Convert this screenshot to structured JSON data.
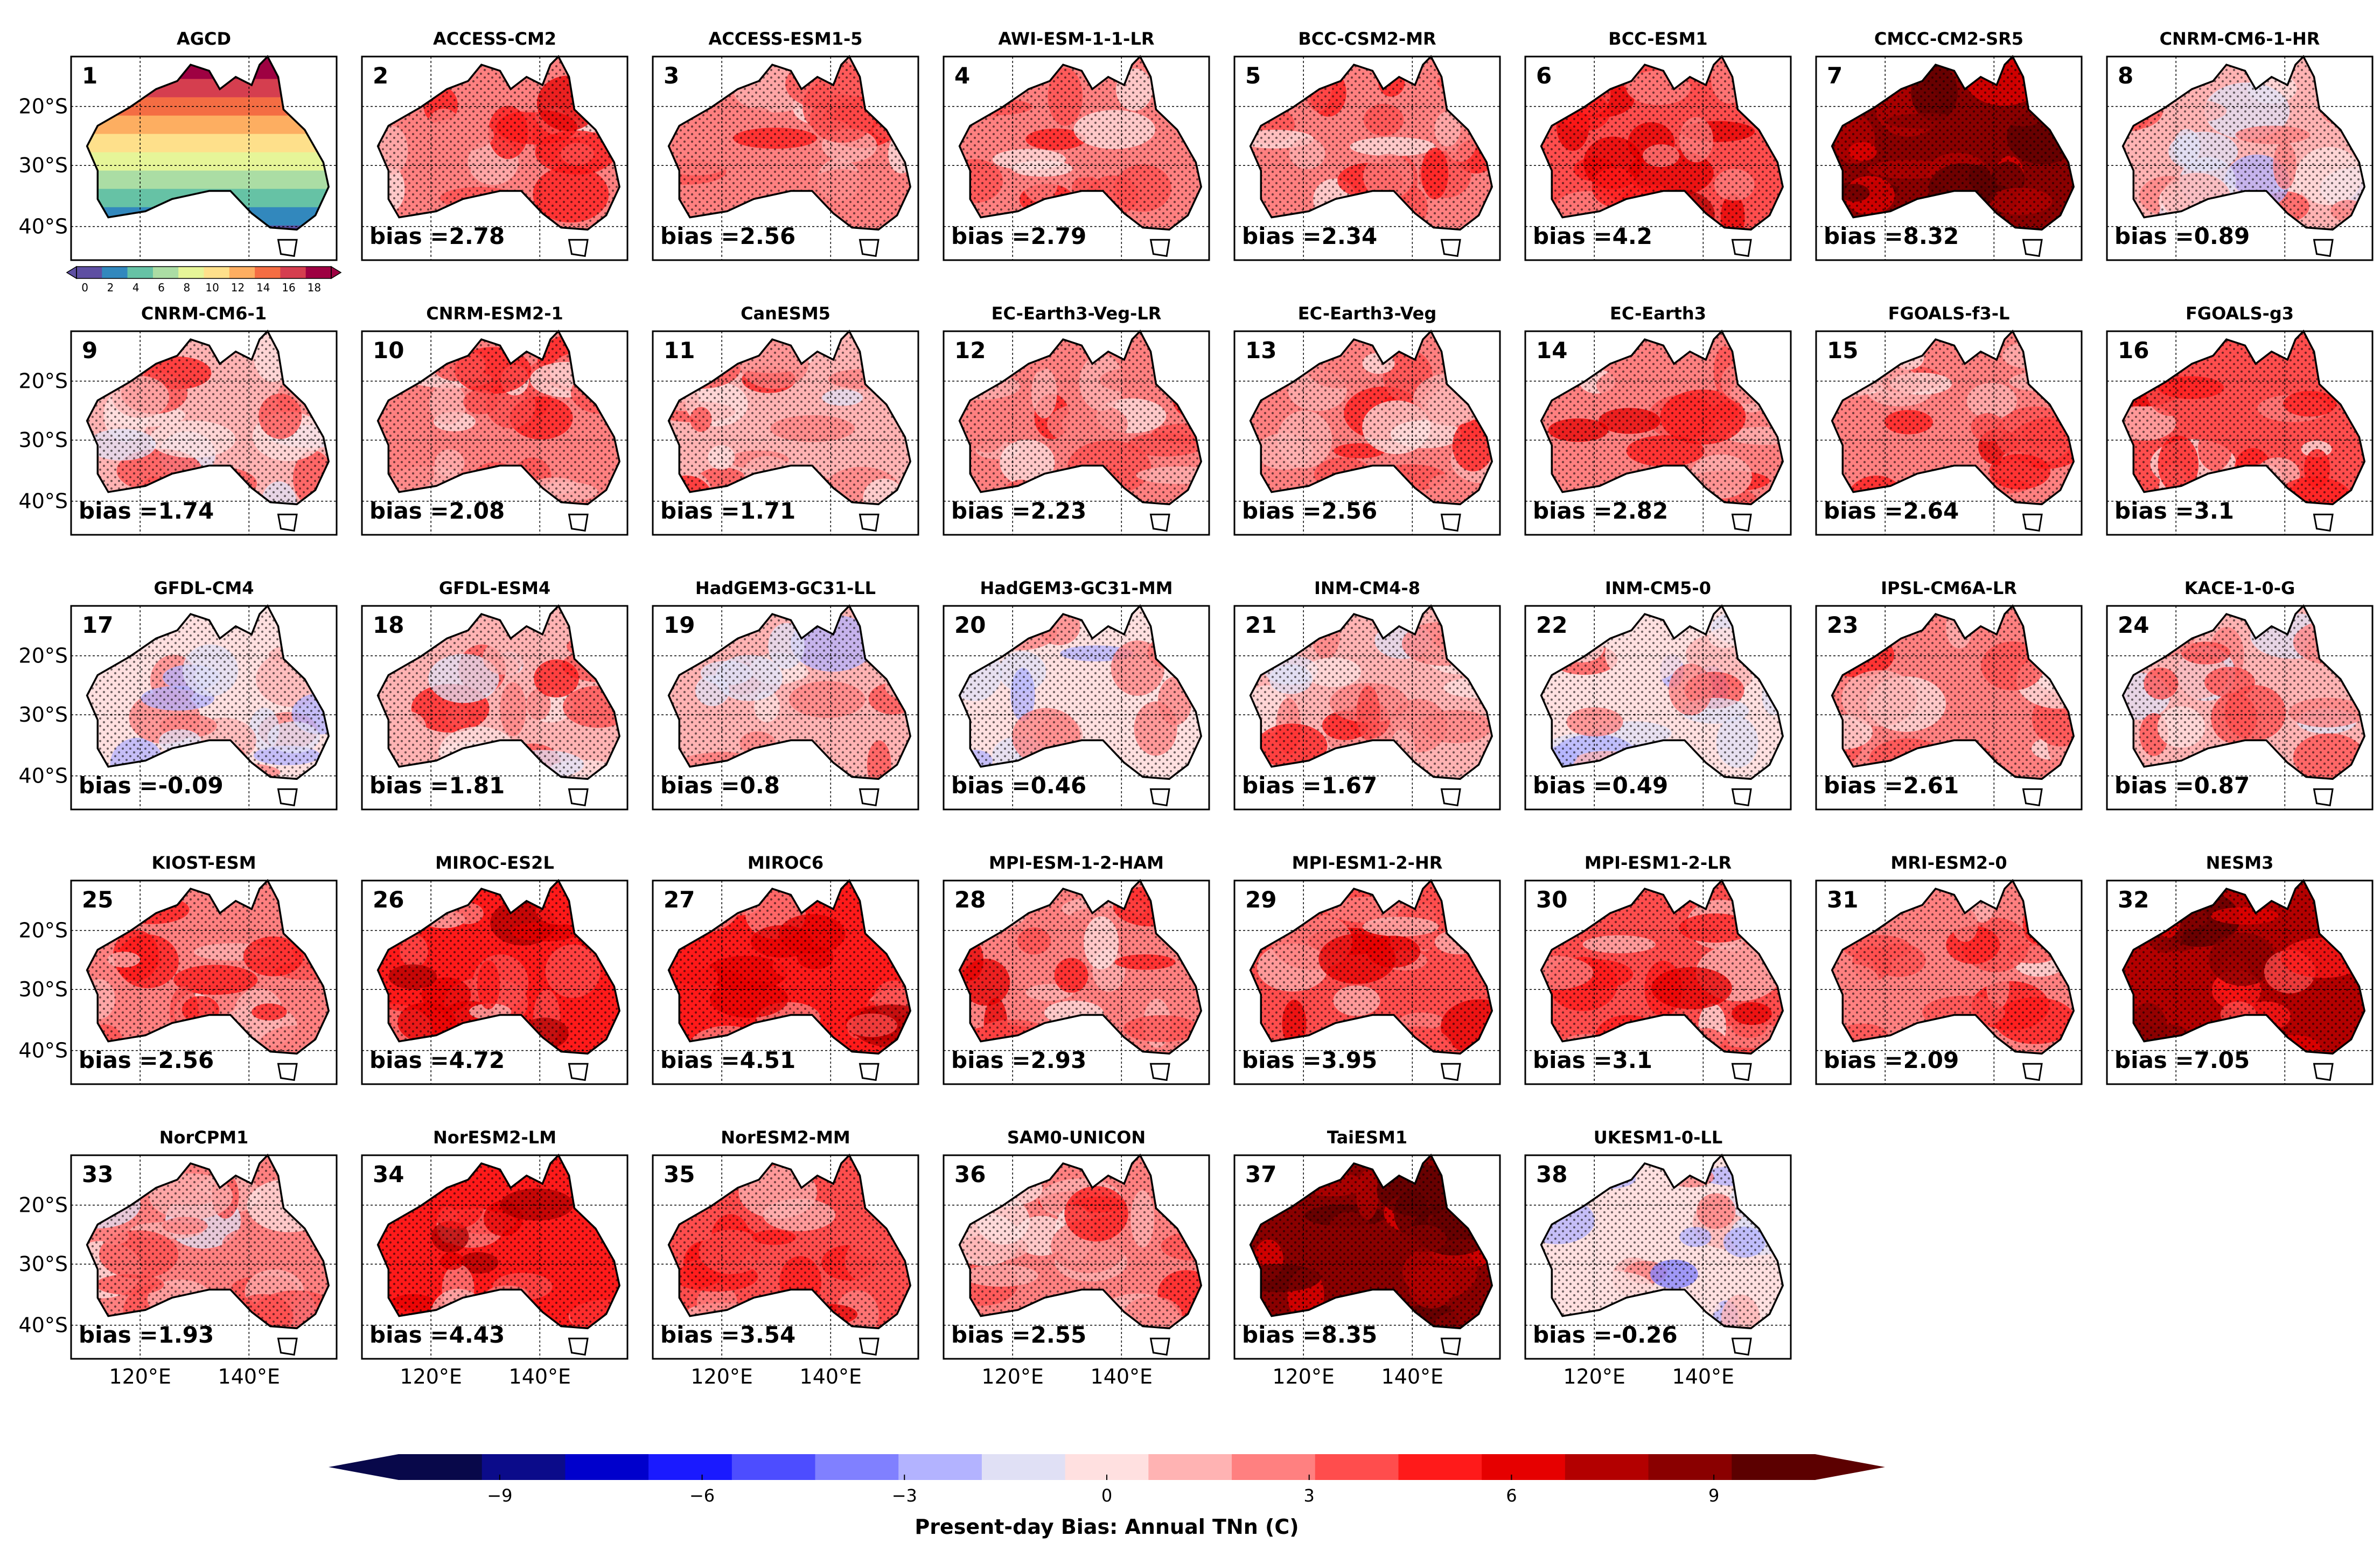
{
  "chart_data": {
    "type": "map-panel-grid",
    "title": "Present-day Bias: Annual TNn (C)",
    "colorbar": {
      "label": "Present-day Bias: Annual TNn (C)",
      "ticks": [
        "−9",
        "−6",
        "−3",
        "0",
        "3",
        "6",
        "9"
      ],
      "tick_values": [
        -9,
        -6,
        -3,
        0,
        3,
        6,
        9
      ],
      "range": [
        -10.5,
        10.5
      ],
      "extend": "both"
    },
    "obs_colorbar": {
      "ticks": [
        "0",
        "2",
        "4",
        "6",
        "8",
        "10",
        "12",
        "14",
        "16",
        "18"
      ],
      "range": [
        0,
        18
      ],
      "extend": "both"
    },
    "lat_labels": [
      "20°S",
      "30°S",
      "40°S"
    ],
    "lon_labels": [
      "120°E",
      "140°E"
    ],
    "panels": [
      {
        "num": "1",
        "name": "AGCD"
      },
      {
        "num": "2",
        "name": "ACCESS-CM2",
        "bias": 2.78
      },
      {
        "num": "3",
        "name": "ACCESS-ESM1-5",
        "bias": 2.56
      },
      {
        "num": "4",
        "name": "AWI-ESM-1-1-LR",
        "bias": 2.79
      },
      {
        "num": "5",
        "name": "BCC-CSM2-MR",
        "bias": 2.34
      },
      {
        "num": "6",
        "name": "BCC-ESM1",
        "bias": 4.2
      },
      {
        "num": "7",
        "name": "CMCC-CM2-SR5",
        "bias": 8.32
      },
      {
        "num": "8",
        "name": "CNRM-CM6-1-HR",
        "bias": 0.89
      },
      {
        "num": "9",
        "name": "CNRM-CM6-1",
        "bias": 1.74
      },
      {
        "num": "10",
        "name": "CNRM-ESM2-1",
        "bias": 2.08
      },
      {
        "num": "11",
        "name": "CanESM5",
        "bias": 1.71
      },
      {
        "num": "12",
        "name": "EC-Earth3-Veg-LR",
        "bias": 2.23
      },
      {
        "num": "13",
        "name": "EC-Earth3-Veg",
        "bias": 2.56
      },
      {
        "num": "14",
        "name": "EC-Earth3",
        "bias": 2.82
      },
      {
        "num": "15",
        "name": "FGOALS-f3-L",
        "bias": 2.64
      },
      {
        "num": "16",
        "name": "FGOALS-g3",
        "bias": 3.1
      },
      {
        "num": "17",
        "name": "GFDL-CM4",
        "bias": -0.09
      },
      {
        "num": "18",
        "name": "GFDL-ESM4",
        "bias": 1.81
      },
      {
        "num": "19",
        "name": "HadGEM3-GC31-LL",
        "bias": 0.8
      },
      {
        "num": "20",
        "name": "HadGEM3-GC31-MM",
        "bias": 0.46
      },
      {
        "num": "21",
        "name": "INM-CM4-8",
        "bias": 1.67
      },
      {
        "num": "22",
        "name": "INM-CM5-0",
        "bias": 0.49
      },
      {
        "num": "23",
        "name": "IPSL-CM6A-LR",
        "bias": 2.61
      },
      {
        "num": "24",
        "name": "KACE-1-0-G",
        "bias": 0.87
      },
      {
        "num": "25",
        "name": "KIOST-ESM",
        "bias": 2.56
      },
      {
        "num": "26",
        "name": "MIROC-ES2L",
        "bias": 4.72
      },
      {
        "num": "27",
        "name": "MIROC6",
        "bias": 4.51
      },
      {
        "num": "28",
        "name": "MPI-ESM-1-2-HAM",
        "bias": 2.93
      },
      {
        "num": "29",
        "name": "MPI-ESM1-2-HR",
        "bias": 3.95
      },
      {
        "num": "30",
        "name": "MPI-ESM1-2-LR",
        "bias": 3.1
      },
      {
        "num": "31",
        "name": "MRI-ESM2-0",
        "bias": 2.09
      },
      {
        "num": "32",
        "name": "NESM3",
        "bias": 7.05
      },
      {
        "num": "33",
        "name": "NorCPM1",
        "bias": 1.93
      },
      {
        "num": "34",
        "name": "NorESM2-LM",
        "bias": 4.43
      },
      {
        "num": "35",
        "name": "NorESM2-MM",
        "bias": 3.54
      },
      {
        "num": "36",
        "name": "SAM0-UNICON",
        "bias": 2.55
      },
      {
        "num": "37",
        "name": "TaiESM1",
        "bias": 8.35
      },
      {
        "num": "38",
        "name": "UKESM1-0-LL",
        "bias": -0.26
      }
    ]
  },
  "bias_prefix": "bias =",
  "colors": {
    "frame": "#000000",
    "bias_cmap": [
      "#08084a",
      "#0b0b8a",
      "#0000cc",
      "#1a1aff",
      "#4d4dff",
      "#8080ff",
      "#b3b3ff",
      "#e0e0f5",
      "#ffe0e0",
      "#ffb3b3",
      "#ff8080",
      "#ff4d4d",
      "#ff1a1a",
      "#e60000",
      "#b30000",
      "#8a0000",
      "#5c0000"
    ],
    "obs_cmap": [
      "#5e4fa2",
      "#3288bd",
      "#66c2a5",
      "#abdda4",
      "#e6f598",
      "#fee08b",
      "#fdae61",
      "#f46d43",
      "#d53e4f",
      "#9e0142"
    ]
  }
}
